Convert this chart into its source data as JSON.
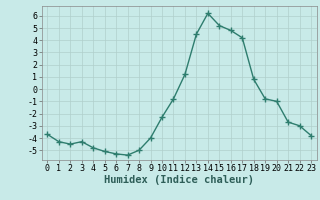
{
  "x": [
    0,
    1,
    2,
    3,
    4,
    5,
    6,
    7,
    8,
    9,
    10,
    11,
    12,
    13,
    14,
    15,
    16,
    17,
    18,
    19,
    20,
    21,
    22,
    23
  ],
  "y": [
    -3.7,
    -4.3,
    -4.5,
    -4.3,
    -4.8,
    -5.1,
    -5.3,
    -5.4,
    -5.0,
    -4.0,
    -2.3,
    -0.8,
    1.2,
    4.5,
    6.2,
    5.2,
    4.8,
    4.2,
    0.8,
    -0.8,
    -1.0,
    -2.7,
    -3.0,
    -3.8
  ],
  "line_color": "#2e7d6e",
  "marker": "+",
  "marker_size": 4,
  "linewidth": 1.0,
  "bg_color": "#c8eae8",
  "grid_color": "#b0cfcc",
  "xlabel": "Humidex (Indice chaleur)",
  "xlabel_fontsize": 7.5,
  "tick_fontsize": 6,
  "xlim": [
    -0.5,
    23.5
  ],
  "ylim": [
    -5.8,
    6.8
  ],
  "yticks": [
    -5,
    -4,
    -3,
    -2,
    -1,
    0,
    1,
    2,
    3,
    4,
    5,
    6
  ],
  "xticks": [
    0,
    1,
    2,
    3,
    4,
    5,
    6,
    7,
    8,
    9,
    10,
    11,
    12,
    13,
    14,
    15,
    16,
    17,
    18,
    19,
    20,
    21,
    22,
    23
  ]
}
